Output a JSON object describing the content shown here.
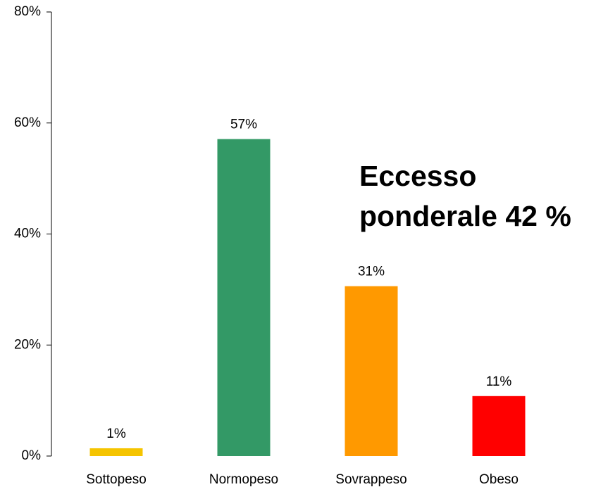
{
  "chart_data": {
    "type": "bar",
    "categories": [
      "Sottopeso",
      "Normopeso",
      "Sovrappeso",
      "Obeso"
    ],
    "values": [
      1.4,
      57.1,
      30.6,
      10.8
    ],
    "value_labels": [
      "1%",
      "57%",
      "31%",
      "11%"
    ],
    "colors": [
      "#f5c400",
      "#339966",
      "#ff9900",
      "#ff0000"
    ],
    "ylim": [
      0,
      80
    ],
    "yticks": [
      {
        "value": 0,
        "label": "0%"
      },
      {
        "value": 20,
        "label": "20%"
      },
      {
        "value": 40,
        "label": "40%"
      },
      {
        "value": 60,
        "label": "60%"
      },
      {
        "value": 80,
        "label": "80%"
      }
    ],
    "annotation": [
      "Eccesso",
      "ponderale 42 %"
    ],
    "annotation_color": "#ff0000"
  }
}
